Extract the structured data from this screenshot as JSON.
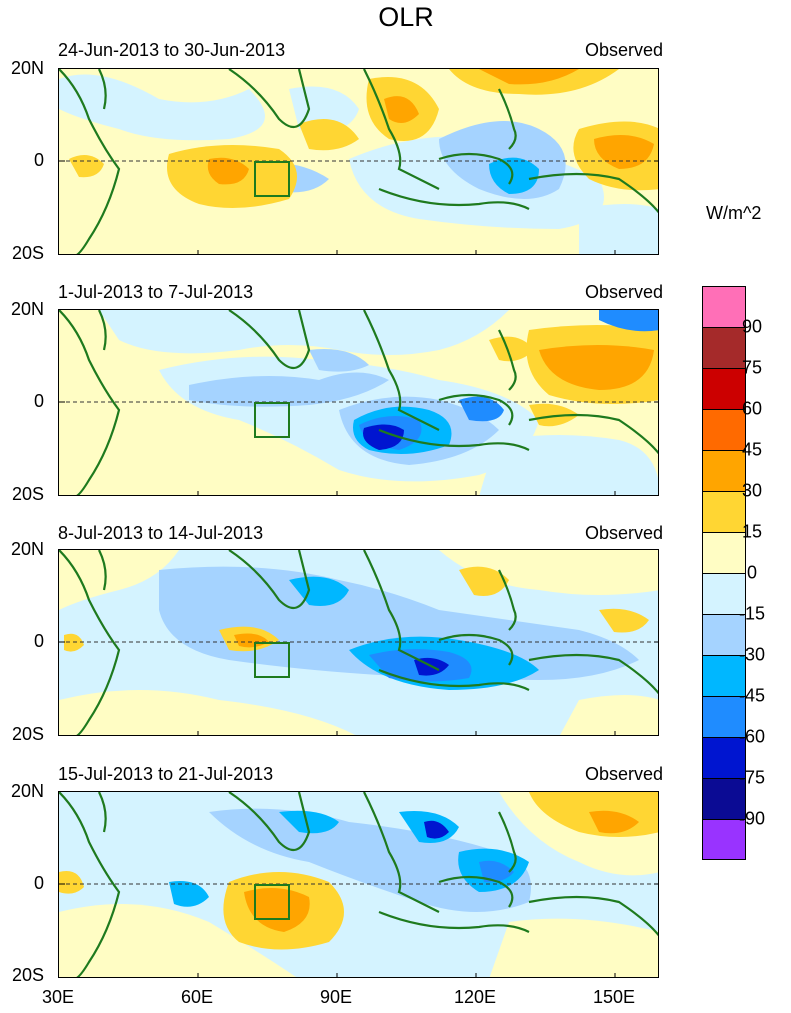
{
  "title": "OLR",
  "units": "W/m^2",
  "panels": [
    {
      "range": "24-Jun-2013 to 30-Jun-2013",
      "tag": "Observed"
    },
    {
      "range": "1-Jul-2013 to 7-Jul-2013",
      "tag": "Observed"
    },
    {
      "range": "8-Jul-2013 to 14-Jul-2013",
      "tag": "Observed"
    },
    {
      "range": "15-Jul-2013 to 21-Jul-2013",
      "tag": "Observed"
    }
  ],
  "y_ticks": [
    "20N",
    "0",
    "20S"
  ],
  "x_ticks": [
    "30E",
    "60E",
    "90E",
    "120E",
    "150E"
  ],
  "colorbar": {
    "levels": [
      "90",
      "75",
      "60",
      "45",
      "30",
      "15",
      "0",
      "-15",
      "-30",
      "-45",
      "-60",
      "-75",
      "-90"
    ],
    "colors": [
      "#ff6fb7",
      "#a52a2a",
      "#cc0000",
      "#ff6a00",
      "#ffa500",
      "#ffd633",
      "#fffdc4",
      "#d4f3ff",
      "#a5d3ff",
      "#00b7ff",
      "#1f8cff",
      "#0015d0",
      "#0b0b94",
      "#9933ff"
    ]
  }
}
